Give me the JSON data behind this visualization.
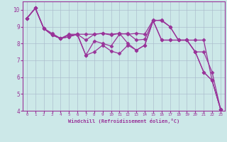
{
  "background_color": "#cce8e8",
  "grid_color": "#aabbcc",
  "line_color": "#993399",
  "xlim": [
    -0.5,
    23.5
  ],
  "ylim": [
    4,
    10.5
  ],
  "xlabel": "Windchill (Refroidissement éolien,°C)",
  "xticks": [
    0,
    1,
    2,
    3,
    4,
    5,
    6,
    7,
    8,
    9,
    10,
    11,
    12,
    13,
    14,
    15,
    16,
    17,
    18,
    19,
    20,
    21,
    22,
    23
  ],
  "yticks": [
    4,
    5,
    6,
    7,
    8,
    9,
    10
  ],
  "series": [
    [
      9.5,
      10.1,
      8.9,
      8.5,
      8.3,
      8.55,
      8.55,
      8.55,
      8.55,
      8.6,
      8.55,
      8.6,
      8.55,
      8.6,
      8.55,
      9.4,
      9.35,
      9.0,
      8.2,
      8.2,
      8.2,
      8.2,
      5.8,
      4.1
    ],
    [
      9.5,
      10.1,
      8.9,
      8.6,
      8.3,
      8.5,
      8.5,
      7.3,
      8.15,
      8.0,
      7.85,
      8.55,
      8.6,
      8.2,
      8.25,
      9.35,
      8.2,
      8.2,
      8.2,
      8.2,
      7.5,
      7.5,
      6.3,
      4.1
    ],
    [
      9.5,
      10.1,
      8.9,
      8.5,
      8.3,
      8.4,
      8.55,
      8.2,
      8.55,
      8.6,
      8.5,
      8.6,
      8.0,
      7.6,
      7.9,
      9.35,
      9.4,
      9.0,
      8.2,
      8.2,
      7.5,
      6.3,
      5.8,
      4.1
    ],
    [
      9.5,
      10.1,
      8.9,
      8.5,
      8.3,
      8.4,
      8.55,
      7.3,
      7.5,
      7.9,
      7.55,
      7.4,
      7.9,
      7.6,
      7.9,
      9.35,
      8.2,
      8.2,
      8.2,
      8.2,
      7.5,
      6.3,
      5.8,
      4.1
    ]
  ],
  "marker": "D",
  "markersize": 2.5,
  "linewidth": 0.9
}
